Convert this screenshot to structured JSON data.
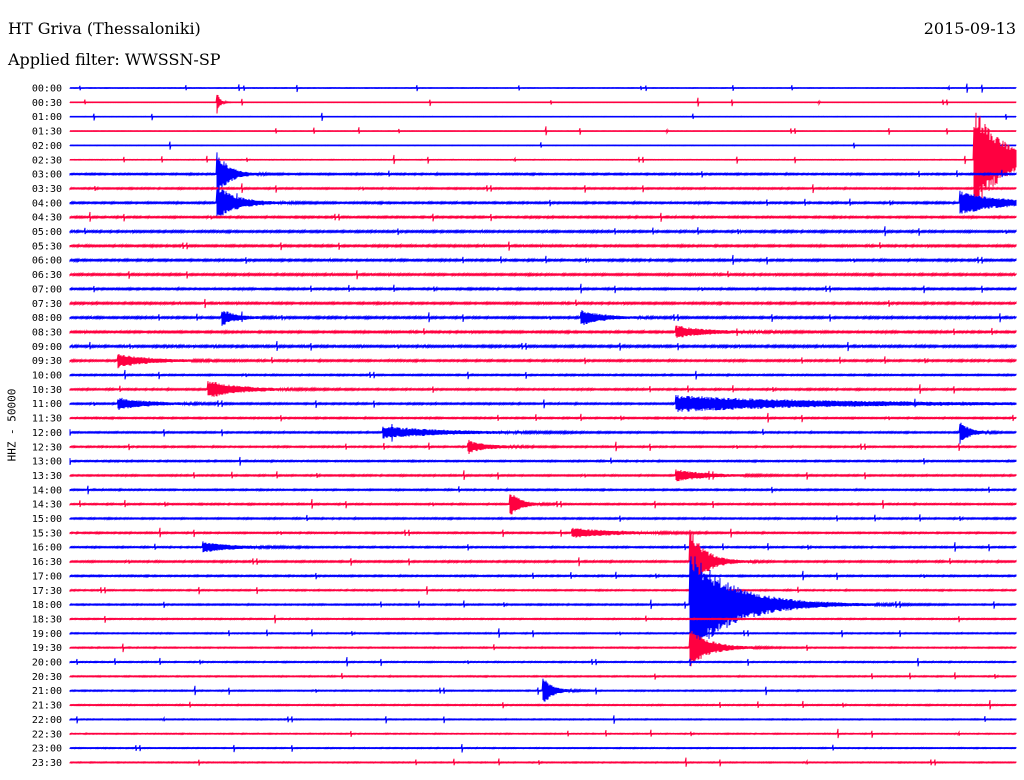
{
  "header": {
    "station": "HT Griva (Thessaloniki)",
    "date": "2015-09-13",
    "filter_label": "Applied filter: WWSSN-SP"
  },
  "chart_data": {
    "type": "line",
    "title": "HT Griva (Thessaloniki)",
    "ylabel": "HHZ - 50000",
    "row_labels": [
      "00:00",
      "00:30",
      "01:00",
      "01:30",
      "02:00",
      "02:30",
      "03:00",
      "03:30",
      "04:00",
      "04:30",
      "05:00",
      "05:30",
      "06:00",
      "06:30",
      "07:00",
      "07:30",
      "08:00",
      "08:30",
      "09:00",
      "09:30",
      "10:00",
      "10:30",
      "11:00",
      "11:30",
      "12:00",
      "12:30",
      "13:00",
      "13:30",
      "14:00",
      "14:30",
      "15:00",
      "15:30",
      "16:00",
      "16:30",
      "17:00",
      "17:30",
      "18:00",
      "18:30",
      "19:00",
      "19:30",
      "20:00",
      "20:30",
      "21:00",
      "21:30",
      "22:00",
      "22:30",
      "23:00",
      "23:30"
    ],
    "row_minutes": 30,
    "colors": [
      "#0000ff",
      "#ff0040"
    ],
    "background_noise": [
      0.15,
      0.1,
      0.12,
      0.1,
      0.12,
      0.2,
      0.5,
      0.45,
      0.55,
      0.55,
      0.6,
      0.6,
      0.6,
      0.6,
      0.55,
      0.6,
      0.6,
      0.6,
      0.65,
      0.55,
      0.45,
      0.5,
      0.5,
      0.45,
      0.45,
      0.45,
      0.45,
      0.45,
      0.45,
      0.45,
      0.45,
      0.45,
      0.45,
      0.5,
      0.45,
      0.4,
      0.4,
      0.35,
      0.35,
      0.35,
      0.35,
      0.35,
      0.35,
      0.35,
      0.3,
      0.3,
      0.3,
      0.3
    ],
    "events": [
      {
        "row": 1,
        "t": 0.155,
        "amp": 13,
        "dur": 0.003
      },
      {
        "row": 6,
        "t": 0.155,
        "amp": 24,
        "dur": 0.012
      },
      {
        "row": 8,
        "t": 0.155,
        "amp": 18,
        "dur": 0.02
      },
      {
        "row": 5,
        "t": 0.955,
        "amp": 55,
        "dur": 0.03
      },
      {
        "row": 8,
        "t": 0.94,
        "amp": 12,
        "dur": 0.04
      },
      {
        "row": 16,
        "t": 0.16,
        "amp": 8,
        "dur": 0.015
      },
      {
        "row": 16,
        "t": 0.54,
        "amp": 8,
        "dur": 0.02
      },
      {
        "row": 17,
        "t": 0.64,
        "amp": 6,
        "dur": 0.03
      },
      {
        "row": 19,
        "t": 0.05,
        "amp": 7,
        "dur": 0.03
      },
      {
        "row": 21,
        "t": 0.145,
        "amp": 9,
        "dur": 0.03
      },
      {
        "row": 22,
        "t": 0.05,
        "amp": 6,
        "dur": 0.03
      },
      {
        "row": 22,
        "t": 0.64,
        "amp": 8,
        "dur": 0.15
      },
      {
        "row": 24,
        "t": 0.33,
        "amp": 6,
        "dur": 0.06
      },
      {
        "row": 24,
        "t": 0.94,
        "amp": 12,
        "dur": 0.01
      },
      {
        "row": 25,
        "t": 0.42,
        "amp": 6,
        "dur": 0.02
      },
      {
        "row": 27,
        "t": 0.64,
        "amp": 6,
        "dur": 0.03
      },
      {
        "row": 29,
        "t": 0.465,
        "amp": 14,
        "dur": 0.01
      },
      {
        "row": 31,
        "t": 0.53,
        "amp": 5,
        "dur": 0.04
      },
      {
        "row": 32,
        "t": 0.14,
        "amp": 5,
        "dur": 0.03
      },
      {
        "row": 33,
        "t": 0.655,
        "amp": 35,
        "dur": 0.015
      },
      {
        "row": 36,
        "t": 0.655,
        "amp": 55,
        "dur": 0.045
      },
      {
        "row": 39,
        "t": 0.655,
        "amp": 20,
        "dur": 0.02
      },
      {
        "row": 42,
        "t": 0.5,
        "amp": 14,
        "dur": 0.01
      }
    ]
  }
}
